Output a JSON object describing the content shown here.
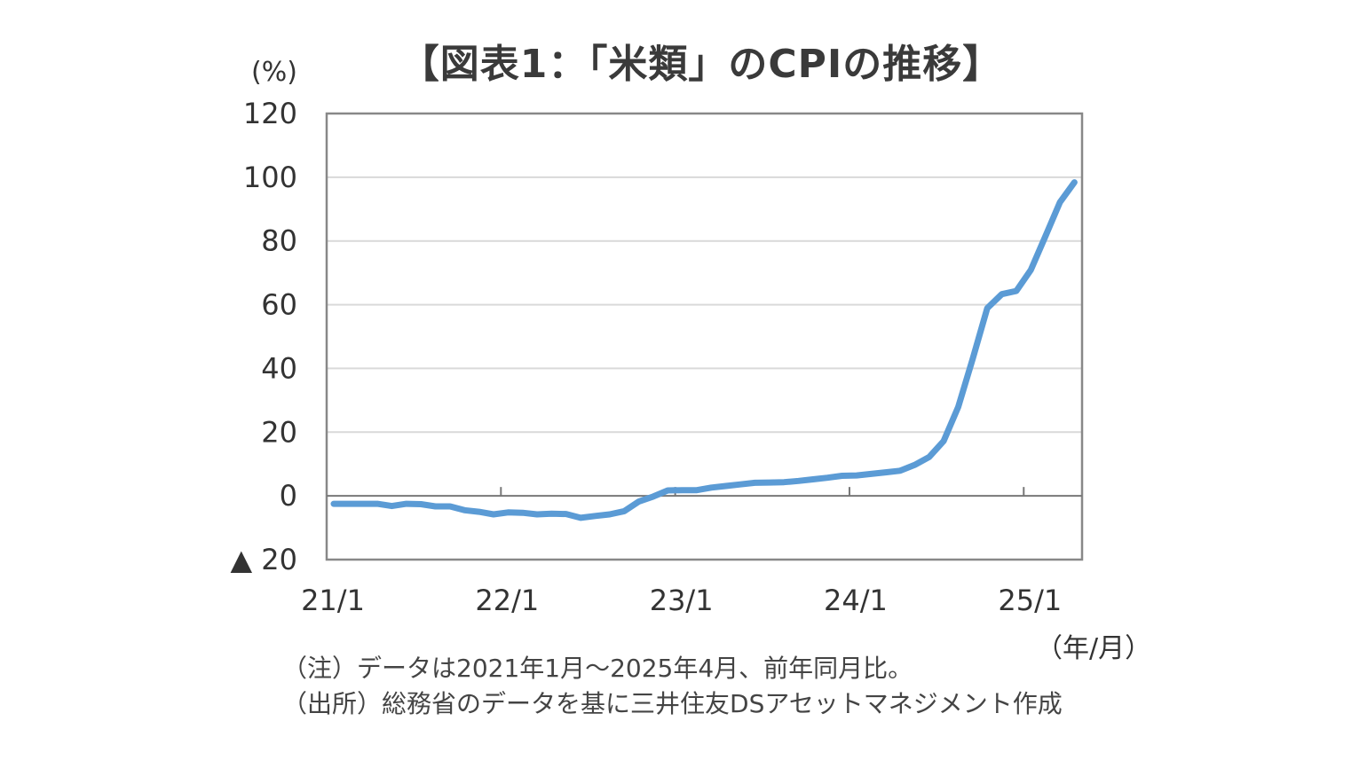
{
  "title": "【図表1：「米類」のCPIの推移】",
  "y_unit": "(%)",
  "x_unit": "（年/月）",
  "notes": [
    "（注）データは2021年1月～2025年4月、前年同月比。",
    "（出所）総務省のデータを基に三井住友DSアセットマネジメント作成"
  ],
  "chart_data": {
    "type": "line",
    "title": "【図表1：「米類」のCPIの推移】",
    "xlabel": "（年/月）",
    "ylabel": "(%)",
    "ylim": [
      -20,
      120
    ],
    "yticks": [
      -20,
      0,
      20,
      40,
      60,
      80,
      100,
      120
    ],
    "ytick_labels": [
      "▲ 20",
      "0",
      "20",
      "40",
      "60",
      "80",
      "100",
      "120"
    ],
    "xtick_labels": [
      "21/1",
      "22/1",
      "23/1",
      "24/1",
      "25/1"
    ],
    "grid": true,
    "series_color": "#5b9bd5",
    "series": [
      {
        "name": "",
        "x": [
          "2021-01",
          "2021-02",
          "2021-03",
          "2021-04",
          "2021-05",
          "2021-06",
          "2021-07",
          "2021-08",
          "2021-09",
          "2021-10",
          "2021-11",
          "2021-12",
          "2022-01",
          "2022-02",
          "2022-03",
          "2022-04",
          "2022-05",
          "2022-06",
          "2022-07",
          "2022-08",
          "2022-09",
          "2022-10",
          "2022-11",
          "2022-12",
          "2023-01",
          "2023-02",
          "2023-03",
          "2023-04",
          "2023-05",
          "2023-06",
          "2023-07",
          "2023-08",
          "2023-09",
          "2023-10",
          "2023-11",
          "2023-12",
          "2024-01",
          "2024-02",
          "2024-03",
          "2024-04",
          "2024-05",
          "2024-06",
          "2024-07",
          "2024-08",
          "2024-09",
          "2024-10",
          "2024-11",
          "2024-12",
          "2025-01",
          "2025-02",
          "2025-03",
          "2025-04"
        ],
        "values": [
          -2.5,
          -2.5,
          -2.5,
          -2.5,
          -3.2,
          -2.5,
          -2.6,
          -3.3,
          -3.3,
          -4.5,
          -5.0,
          -5.8,
          -5.2,
          -5.3,
          -5.8,
          -5.6,
          -5.7,
          -6.9,
          -6.3,
          -5.8,
          -4.8,
          -1.8,
          -0.2,
          1.7,
          1.8,
          1.8,
          2.6,
          3.1,
          3.6,
          4.1,
          4.2,
          4.3,
          4.7,
          5.2,
          5.7,
          6.3,
          6.4,
          6.9,
          7.4,
          7.9,
          9.7,
          12.2,
          17.2,
          27.9,
          43.0,
          58.9,
          63.3,
          64.3,
          70.9,
          81.4,
          92.1,
          98.4
        ]
      }
    ]
  }
}
